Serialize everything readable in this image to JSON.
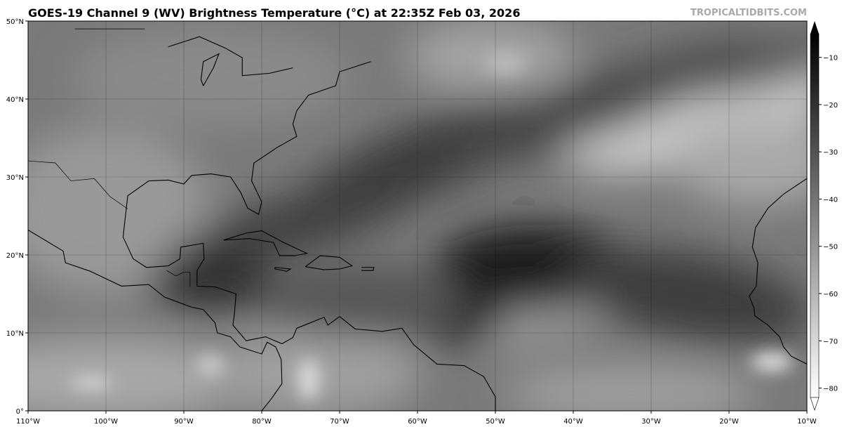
{
  "title": "GOES-19 Channel 9 (WV) Brightness Temperature (°C) at 22:35Z Feb 03, 2026",
  "credit": "TROPICALTIDBITS.COM",
  "map": {
    "extent": {
      "lon": [
        -110,
        -10
      ],
      "lat": [
        0,
        50
      ]
    },
    "lat_labels": [
      "0°",
      "10°N",
      "20°N",
      "30°N",
      "40°N",
      "50°N"
    ],
    "lat_values": [
      0,
      10,
      20,
      30,
      40,
      50
    ],
    "lon_labels": [
      "110°W",
      "100°W",
      "90°W",
      "80°W",
      "70°W",
      "60°W",
      "50°W",
      "40°W",
      "30°W",
      "20°W",
      "10°W"
    ],
    "lon_values": [
      -110,
      -100,
      -90,
      -80,
      -70,
      -60,
      -50,
      -40,
      -30,
      -20,
      -10
    ],
    "gridlines": true
  },
  "colorbar": {
    "range": [
      -82,
      -5
    ],
    "ticks": [
      -10,
      -20,
      -30,
      -40,
      -50,
      -60,
      -70,
      -80
    ],
    "tick_labels": [
      "−10",
      "−20",
      "−30",
      "−40",
      "−50",
      "−60",
      "−70",
      "−80"
    ],
    "colormap": "gray (black = warm, white = cold)",
    "extend": "both",
    "top_color": "#000000",
    "bottom_color": "#ffffff"
  }
}
